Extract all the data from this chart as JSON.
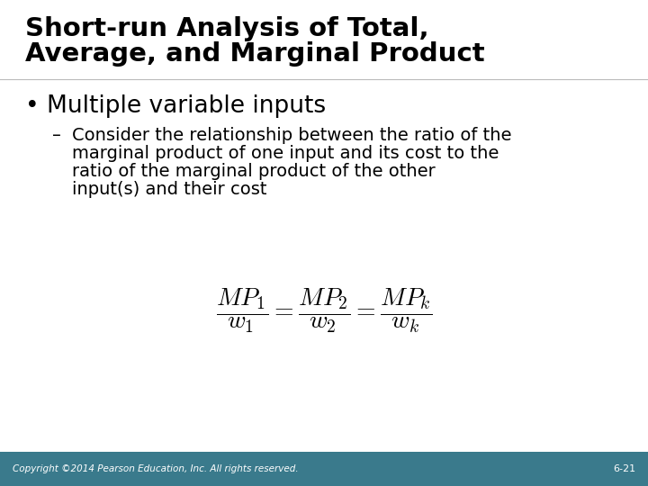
{
  "title_line1": "Short-run Analysis of Total,",
  "title_line2": "Average, and Marginal Product",
  "bullet": "Multiple variable inputs",
  "sub_line1": "Consider the relationship between the ratio of the",
  "sub_line2": "marginal product of one input and its cost to the",
  "sub_line3": "ratio of the marginal product of the other",
  "sub_line4": "input(s) and their cost",
  "footer_left": "Copyright ©2014 Pearson Education, Inc. All rights reserved.",
  "footer_right": "6-21",
  "bg_color": "#ffffff",
  "footer_bg": "#3a7a8c",
  "footer_text_color": "#ffffff",
  "title_color": "#000000",
  "body_color": "#000000",
  "title_fontsize": 21,
  "bullet_fontsize": 19,
  "sub_fontsize": 14,
  "footer_fontsize": 7.5,
  "formula_fontsize": 20
}
